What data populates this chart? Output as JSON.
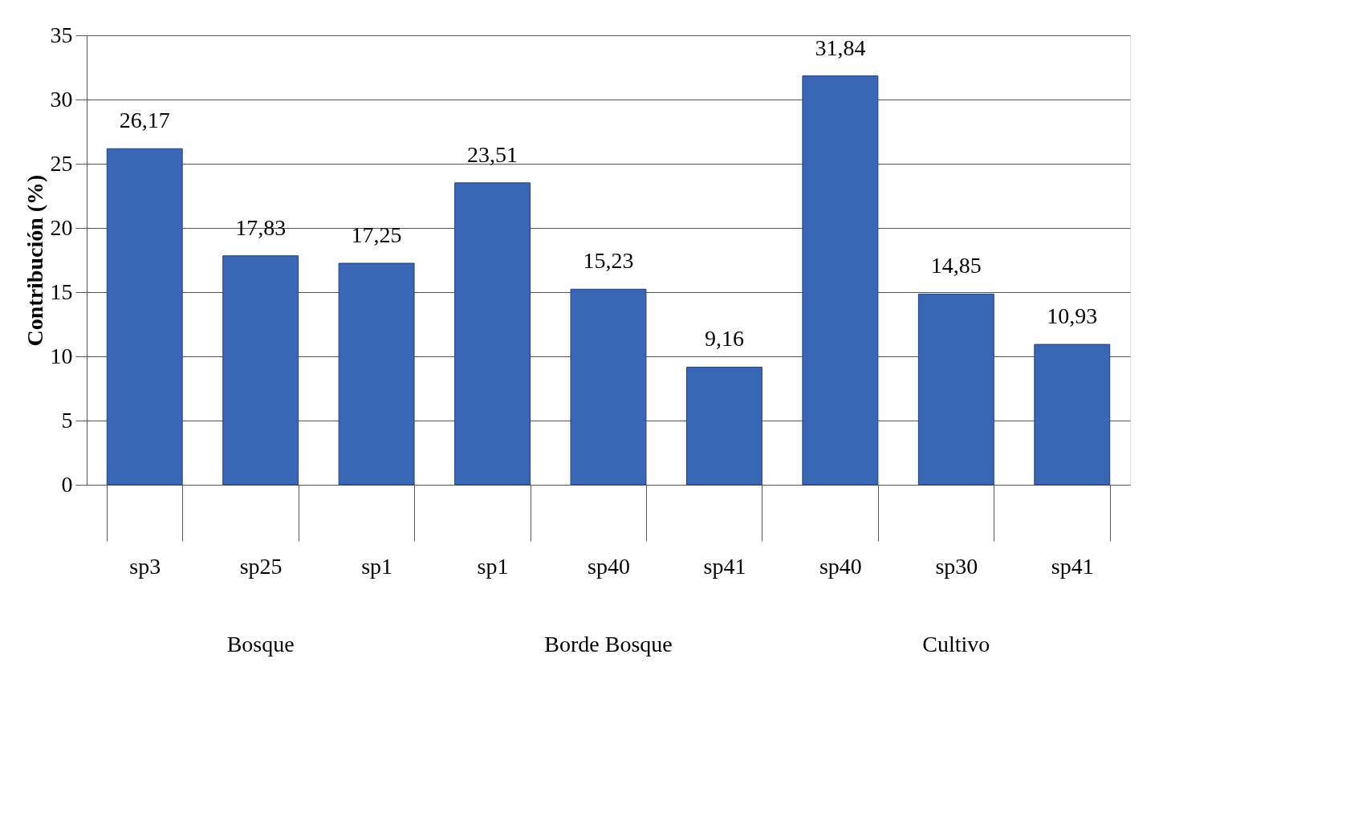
{
  "chart_data": {
    "type": "bar",
    "ylabel": "Contribución (%)",
    "categories": [
      "sp3",
      "sp25",
      "sp1",
      "sp1",
      "sp40",
      "sp41",
      "sp40",
      "sp30",
      "sp41"
    ],
    "values": [
      26.17,
      17.83,
      17.25,
      23.51,
      15.23,
      9.16,
      31.84,
      14.85,
      10.93
    ],
    "value_labels": [
      "26,17",
      "17,83",
      "17,25",
      "23,51",
      "15,23",
      "9,16",
      "31,84",
      "14,85",
      "10,93"
    ],
    "color": "#3a67b5",
    "ylim": [
      0,
      35
    ],
    "yticks": [
      0,
      5,
      10,
      15,
      20,
      25,
      30,
      35
    ],
    "grid": "y",
    "annotations": [
      "Bosque",
      "Borde Bosque",
      "Cultivo"
    ]
  }
}
